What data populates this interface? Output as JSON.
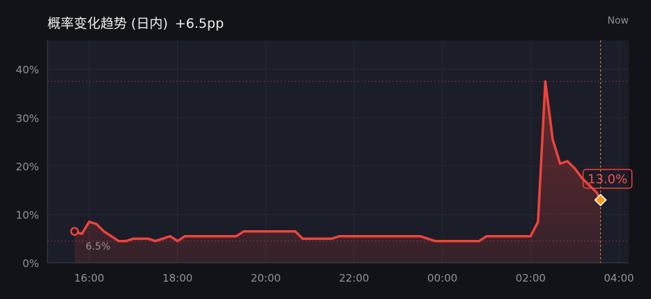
{
  "header": {
    "title": "概率变化趋势 (日内)",
    "change": "+6.5pp",
    "now_label": "Now"
  },
  "colors": {
    "background": "#111318",
    "plot_background": "#1b1d28",
    "line": "#f0433a",
    "end_marker": "#f39a1d",
    "now_line": "#c8822a"
  },
  "chart_data": {
    "type": "area",
    "title": "概率变化趋势 (日内)",
    "xlabel": "",
    "ylabel": "",
    "x_ticks": [
      "16:00",
      "18:00",
      "20:00",
      "22:00",
      "00:00",
      "02:00",
      "04:00"
    ],
    "y_ticks": [
      "0%",
      "10%",
      "20%",
      "30%",
      "40%"
    ],
    "ylim": [
      0,
      46
    ],
    "grid": true,
    "start_label": "6.5%",
    "end_label": "13.0%",
    "reference_lines": [
      37.5,
      4.5
    ],
    "series": [
      {
        "x": [
          "15:40",
          "15:50",
          "16:00",
          "16:10",
          "16:20",
          "16:30",
          "16:40",
          "16:50",
          "17:00",
          "17:10",
          "17:20",
          "17:30",
          "17:40",
          "17:50",
          "18:00",
          "18:10",
          "18:20",
          "18:30",
          "18:40",
          "18:50",
          "19:00",
          "19:10",
          "19:20",
          "19:30",
          "19:40",
          "19:50",
          "20:00",
          "20:10",
          "20:20",
          "20:30",
          "20:40",
          "20:50",
          "21:00",
          "21:10",
          "21:20",
          "21:30",
          "21:40",
          "21:50",
          "22:00",
          "22:10",
          "22:20",
          "22:30",
          "22:40",
          "22:50",
          "23:00",
          "23:10",
          "23:20",
          "23:30",
          "23:40",
          "23:50",
          "00:00",
          "00:10",
          "00:20",
          "00:30",
          "00:40",
          "00:50",
          "01:00",
          "01:10",
          "01:20",
          "01:30",
          "01:40",
          "01:50",
          "02:00",
          "02:10",
          "02:20",
          "02:30",
          "02:40",
          "02:50",
          "03:00",
          "03:10",
          "03:20",
          "03:30",
          "03:35"
        ],
        "values": [
          6.5,
          6.0,
          8.5,
          8.0,
          6.5,
          5.5,
          4.5,
          4.5,
          5.0,
          5.0,
          5.0,
          4.5,
          5.0,
          5.5,
          4.5,
          5.5,
          5.5,
          5.5,
          5.5,
          5.5,
          5.5,
          5.5,
          5.5,
          6.5,
          6.5,
          6.5,
          6.5,
          6.5,
          6.5,
          6.5,
          6.5,
          5.0,
          5.0,
          5.0,
          5.0,
          5.0,
          5.5,
          5.5,
          5.5,
          5.5,
          5.5,
          5.5,
          5.5,
          5.5,
          5.5,
          5.5,
          5.5,
          5.5,
          5.0,
          4.5,
          4.5,
          4.5,
          4.5,
          4.5,
          4.5,
          4.5,
          5.5,
          5.5,
          5.5,
          5.5,
          5.5,
          5.5,
          5.5,
          8.5,
          37.5,
          25.5,
          20.5,
          21.0,
          19.5,
          17.5,
          16.0,
          14.5,
          13.0
        ]
      }
    ]
  }
}
